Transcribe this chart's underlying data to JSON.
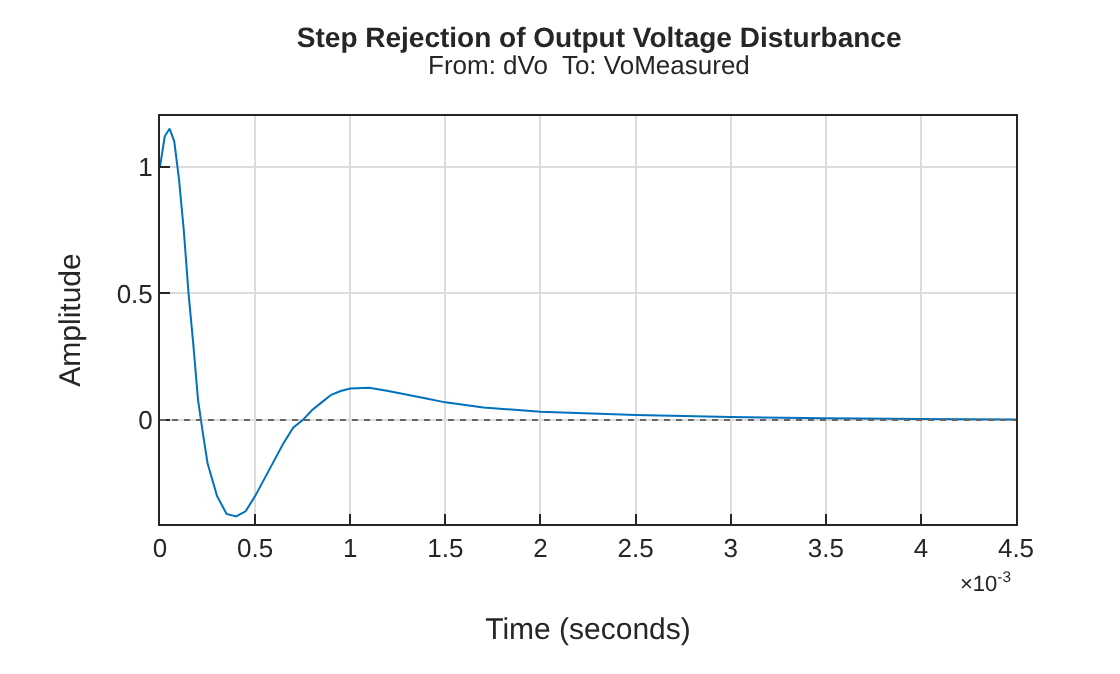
{
  "chart_data": {
    "type": "line",
    "title": "Step Rejection of Output Voltage Disturbance",
    "subtitle": "From: dVo  To: VoMeasured",
    "xlabel": "Time (seconds)",
    "ylabel": "Amplitude",
    "annotations": [
      "×10$^{-3}$"
    ],
    "x": [
      0,
      0.025,
      0.05,
      0.075,
      0.1,
      0.125,
      0.15,
      0.175,
      0.2,
      0.225,
      0.25,
      0.3,
      0.35,
      0.4,
      0.45,
      0.5,
      0.55,
      0.6,
      0.65,
      0.7,
      0.75,
      0.8,
      0.85,
      0.9,
      0.95,
      1.0,
      1.1,
      1.2,
      1.3,
      1.4,
      1.5,
      1.7,
      2.0,
      2.5,
      3.0,
      3.5,
      4.0,
      4.5
    ],
    "series": [
      {
        "color": "#0072bd",
        "values": [
          1.0,
          1.12,
          1.15,
          1.1,
          0.95,
          0.75,
          0.5,
          0.3,
          0.08,
          -0.05,
          -0.17,
          -0.3,
          -0.37,
          -0.38,
          -0.36,
          -0.3,
          -0.23,
          -0.16,
          -0.09,
          -0.03,
          0.0,
          0.04,
          0.07,
          0.1,
          0.115,
          0.125,
          0.128,
          0.115,
          0.1,
          0.085,
          0.07,
          0.05,
          0.033,
          0.02,
          0.012,
          0.007,
          0.004,
          0.002
        ]
      }
    ],
    "xlim": [
      0,
      4.5
    ],
    "xticks": [
      0,
      0.5,
      1,
      1.5,
      2,
      2.5,
      3,
      3.5,
      4,
      4.5
    ],
    "ylim": [
      -0.41,
      1.2
    ],
    "yticks": [
      0,
      0.5,
      1
    ],
    "ref_lines": [
      {
        "axis": "y",
        "value": 0,
        "color": "#666666",
        "line_style": "dotted"
      }
    ],
    "grid": true,
    "marker": "none",
    "line_style": "solid"
  }
}
